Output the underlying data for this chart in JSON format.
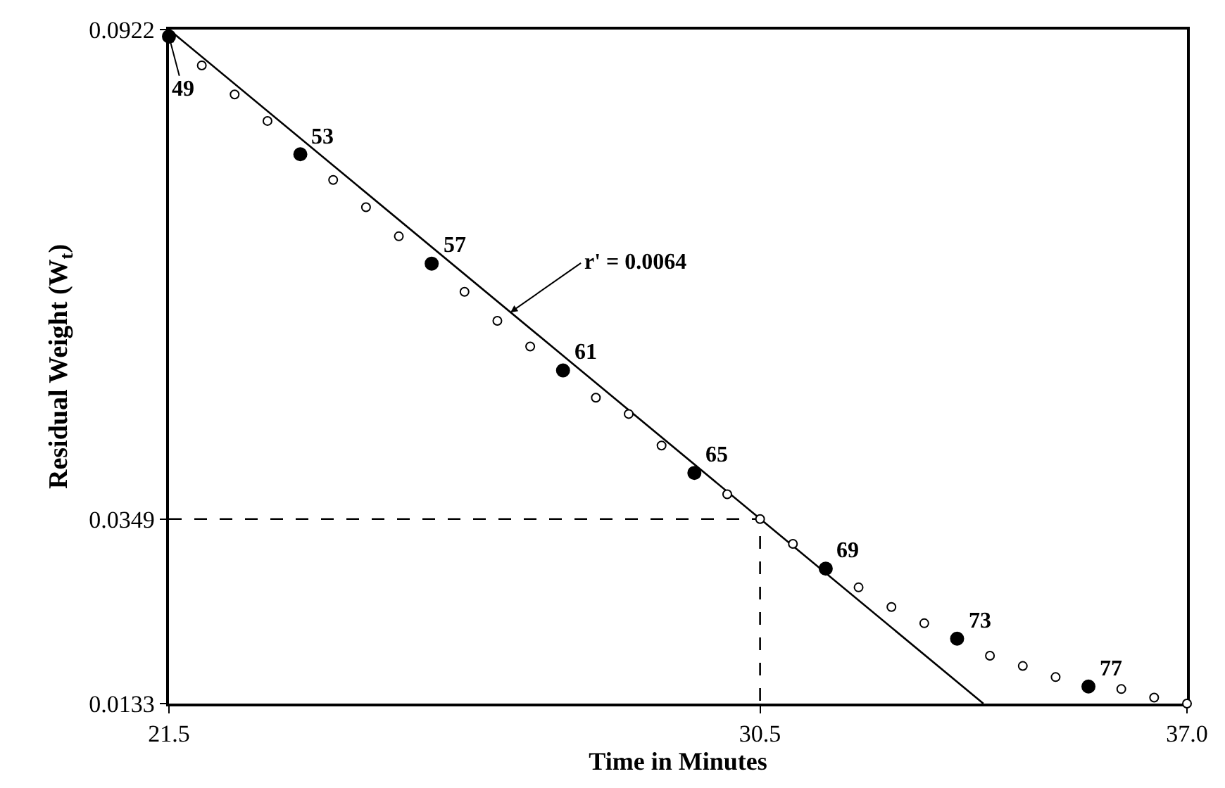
{
  "chart_data": {
    "type": "scatter",
    "xlabel": "Time in Minutes",
    "ylabel": "Residual Weight (W$_{t}$)",
    "xlim": [
      21.5,
      37.0
    ],
    "ylim": [
      0.0133,
      0.0922
    ],
    "xticks": [
      21.5,
      30.5,
      {
        "value": 37.0,
        "label": "37.0"
      }
    ],
    "yticks": [
      0.0133,
      0.0349,
      0.0922
    ],
    "marker": "circle",
    "series": [
      {
        "type": "line",
        "color": "#000000",
        "x": [
          21.5,
          33.9
        ],
        "values": [
          0.0922,
          0.0133
        ],
        "marker": "none"
      },
      {
        "type": "line",
        "color": "#000000",
        "x": [
          21.5,
          30.5,
          30.5
        ],
        "values": [
          0.0349,
          0.0349,
          0.0133
        ],
        "marker": "none",
        "line_style": "dashed"
      },
      {
        "color": "#ffffff",
        "x": [
          22.0,
          22.5,
          23.0,
          24.0,
          24.5,
          25.0,
          26.0,
          26.5,
          27.0,
          28.0,
          28.5,
          29.0,
          30.0,
          30.5,
          31.0,
          32.0,
          32.5,
          33.0,
          34.0,
          34.5,
          35.0,
          36.0,
          36.5,
          37.0
        ],
        "values": [
          0.088,
          0.0846,
          0.0815,
          0.0746,
          0.0714,
          0.068,
          0.0615,
          0.0581,
          0.0551,
          0.0491,
          0.0472,
          0.0435,
          0.0378,
          0.0349,
          0.032,
          0.0269,
          0.0246,
          0.0227,
          0.0189,
          0.0177,
          0.0164,
          0.015,
          0.014,
          0.0133
        ]
      },
      {
        "color": "#000000",
        "x": [
          21.5,
          23.5,
          25.5,
          27.5,
          29.5,
          31.5,
          33.5,
          35.5
        ],
        "values": [
          0.0914,
          0.0776,
          0.0648,
          0.0523,
          0.0403,
          0.0291,
          0.0209,
          0.0153
        ]
      }
    ],
    "annotations": [
      {
        "text": "49",
        "x": 21.5,
        "y": 0.0914
      },
      {
        "text": "r' = 0.0064",
        "x": 26.7,
        "y": 0.0591
      },
      {
        "text": "53",
        "x": 23.5,
        "y": 0.0776
      },
      {
        "text": "57",
        "x": 25.5,
        "y": 0.0648
      },
      {
        "text": "61",
        "x": 27.5,
        "y": 0.0523
      },
      {
        "text": "65",
        "x": 29.5,
        "y": 0.0403
      },
      {
        "text": "69",
        "x": 31.5,
        "y": 0.0291
      },
      {
        "text": "73",
        "x": 33.5,
        "y": 0.0209
      },
      {
        "text": "77",
        "x": 35.5,
        "y": 0.0153
      }
    ]
  }
}
